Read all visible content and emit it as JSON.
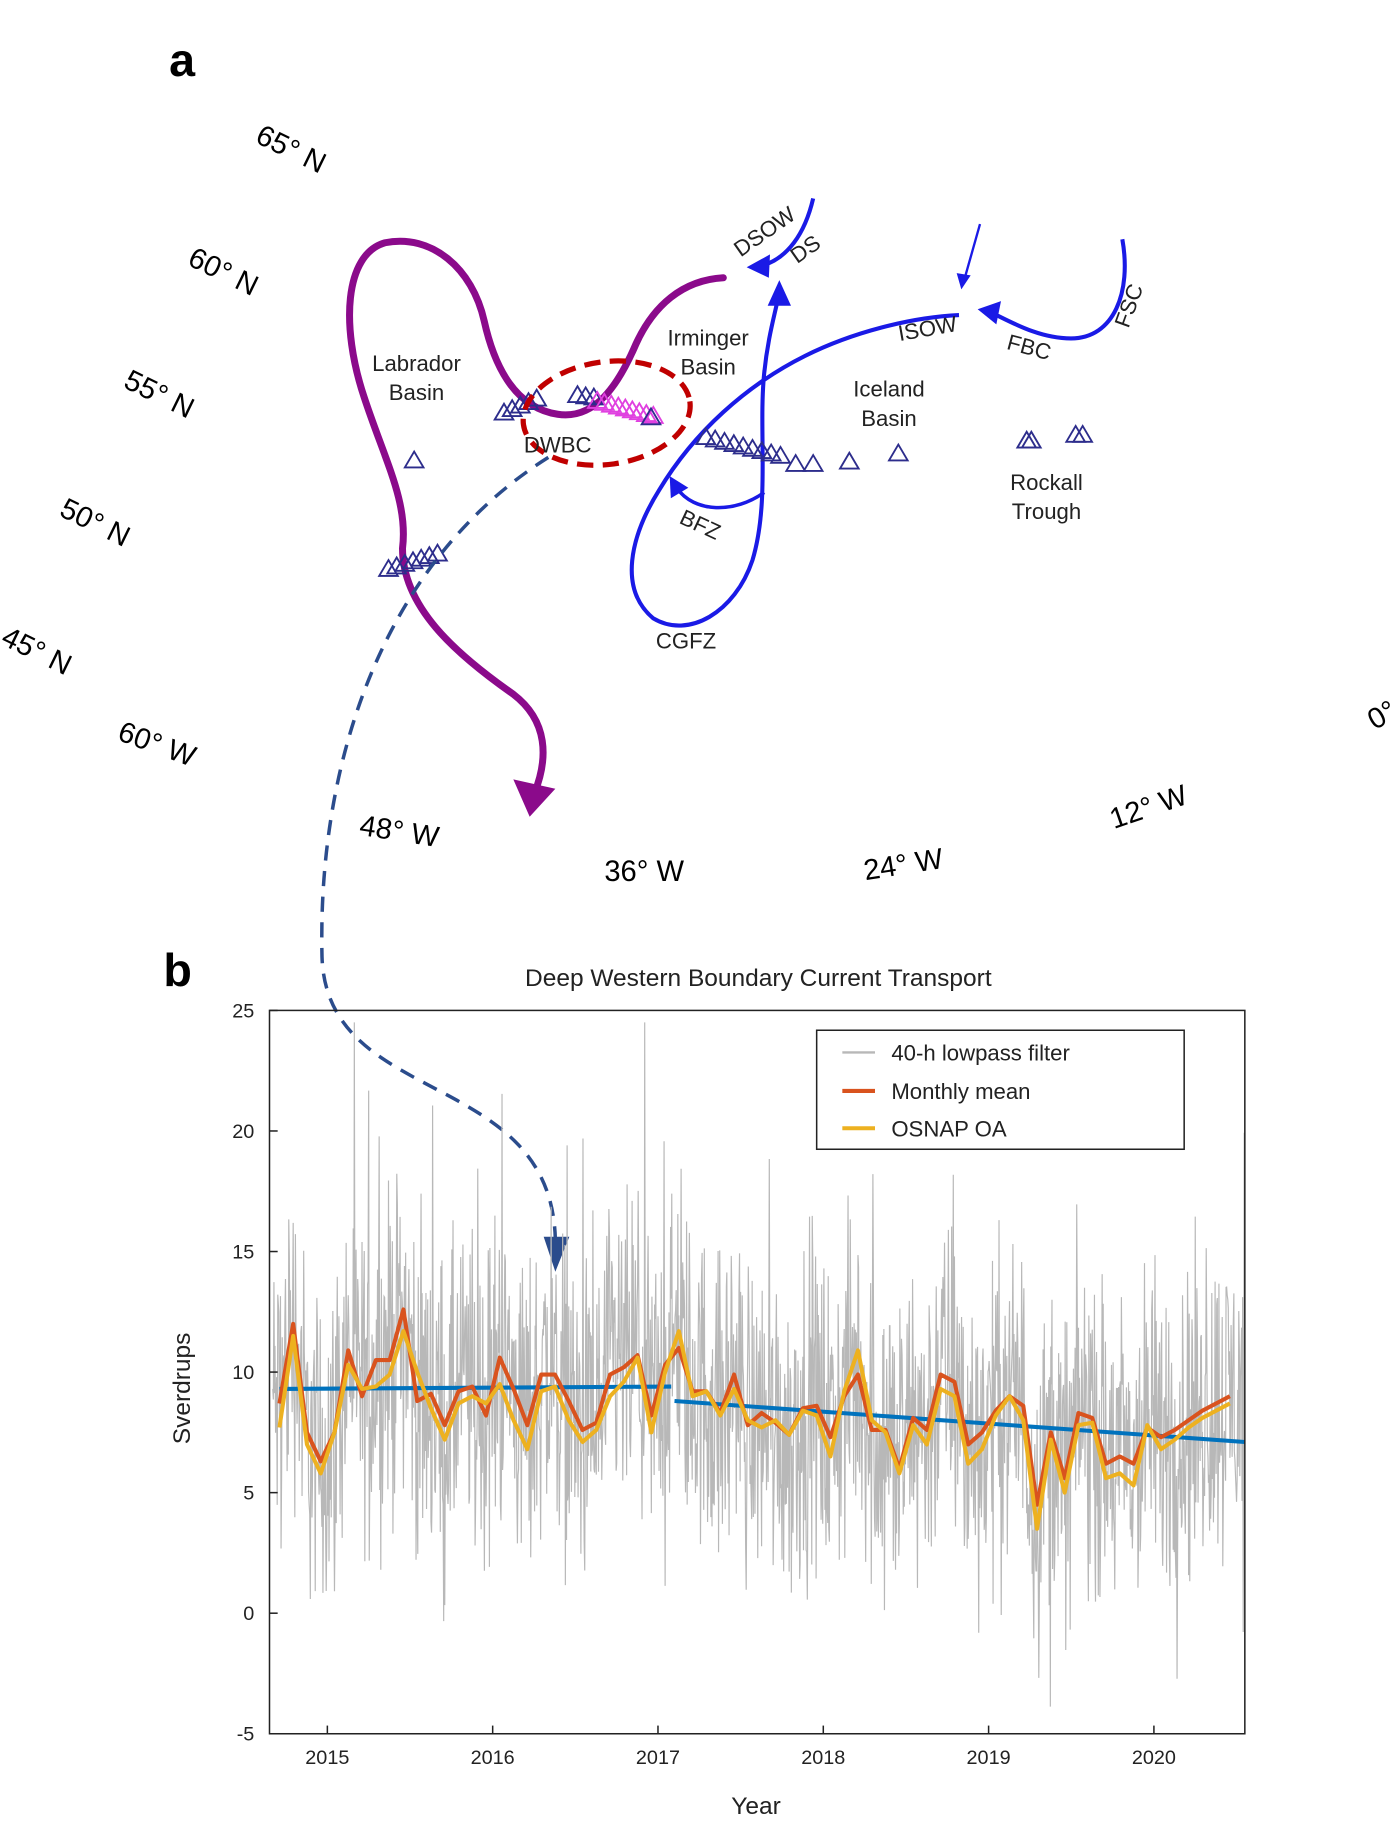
{
  "panel_a": {
    "letter": "a",
    "lat_labels": [
      "65° N",
      "60° N",
      "55° N",
      "50° N",
      "45° N"
    ],
    "lon_labels": [
      "60° W",
      "48° W",
      "36° W",
      "24° W",
      "12° W",
      "0°"
    ],
    "labels": {
      "labrador": [
        "Labrador",
        "Basin"
      ],
      "irminger": [
        "Irminger",
        "Basin"
      ],
      "iceland": [
        "Iceland",
        "Basin"
      ],
      "rockall": [
        "Rockall",
        "Trough"
      ],
      "dwbc": "DWBC",
      "dsow": "DSOW",
      "ds": "DS",
      "isow": "ISOW",
      "fbc": "FBC",
      "fsc": "FSC",
      "bfz": "BFZ",
      "cgfz": "CGFZ"
    },
    "colors": {
      "land": "#2e8b22",
      "ocean": "#a9dcf7",
      "shelf": "#e6f6fd",
      "deep": "#86c8f2",
      "dwbc_path": "#8b0a8b",
      "overflow_path": "#1a1ae6",
      "array": "#2d2d8c",
      "array_highlight": "#e040e0",
      "focus_ring": "#c00000",
      "link_arrow": "#2b4c8c"
    }
  },
  "panel_b": {
    "letter": "b"
  },
  "chart_data": {
    "type": "line",
    "title": "Deep Western Boundary Current Transport",
    "xlabel": "Year",
    "ylabel": "Sverdrups",
    "xlim": [
      2014.65,
      2020.55
    ],
    "ylim": [
      -5,
      25
    ],
    "xticks": [
      2015,
      2016,
      2017,
      2018,
      2019,
      2020
    ],
    "xtick_labels": [
      "2015",
      "2016",
      "2017",
      "2018",
      "2019",
      "2020"
    ],
    "yticks": [
      -5,
      0,
      5,
      10,
      15,
      20,
      25
    ],
    "ytick_labels": [
      "-5",
      "0",
      "5",
      "10",
      "15",
      "20",
      "25"
    ],
    "grid": false,
    "legend_position": "top-right",
    "legend": [
      "40-h lowpass filter",
      "Monthly mean",
      "OSNAP OA"
    ],
    "monthly_start_year": 2014.71,
    "series": [
      {
        "name": "Monthly mean",
        "color": "#d9531e",
        "values": [
          8.7,
          12.0,
          7.5,
          6.3,
          7.5,
          10.9,
          9.0,
          10.5,
          10.5,
          12.6,
          8.8,
          9.1,
          7.8,
          9.2,
          9.4,
          8.2,
          10.6,
          9.3,
          7.8,
          9.9,
          9.9,
          8.8,
          7.6,
          7.9,
          9.9,
          10.2,
          10.7,
          8.2,
          10.3,
          11.0,
          9.2,
          9.2,
          8.3,
          9.9,
          7.8,
          8.3,
          7.9,
          7.4,
          8.5,
          8.6,
          7.3,
          9.0,
          9.9,
          7.6,
          7.6,
          6.0,
          8.1,
          7.6,
          9.9,
          9.6,
          7.0,
          7.5,
          8.4,
          9.0,
          8.6,
          4.5,
          7.5,
          5.6,
          8.3,
          8.1,
          6.2,
          6.5,
          6.2,
          7.7,
          7.3,
          7.6,
          8.0,
          8.4,
          8.7,
          9.0
        ]
      },
      {
        "name": "OSNAP OA",
        "color": "#edb120",
        "values": [
          7.7,
          11.5,
          7.0,
          5.8,
          7.5,
          10.3,
          9.3,
          9.4,
          9.9,
          11.7,
          10.0,
          8.5,
          7.2,
          8.7,
          9.0,
          8.7,
          9.5,
          8.0,
          6.8,
          9.2,
          9.4,
          8.0,
          7.1,
          7.6,
          9.0,
          9.6,
          10.6,
          7.5,
          10.0,
          11.7,
          9.0,
          9.2,
          8.2,
          9.3,
          8.0,
          7.7,
          8.0,
          7.4,
          8.4,
          8.2,
          6.5,
          9.2,
          10.9,
          8.0,
          7.5,
          5.8,
          7.8,
          7.0,
          9.3,
          9.0,
          6.2,
          6.8,
          8.2,
          9.0,
          8.0,
          3.5,
          7.2,
          5.0,
          7.8,
          7.9,
          5.6,
          5.8,
          5.3,
          7.8,
          6.8,
          7.2,
          7.7,
          8.1,
          8.4,
          8.7
        ]
      },
      {
        "name": "40-h lowpass filter",
        "color": "#b8b8b8",
        "approx_range": [
          -4,
          24.5
        ]
      }
    ],
    "trend_lines": [
      {
        "color": "#0072bd",
        "x": [
          2014.71,
          2017.08
        ],
        "y": [
          9.3,
          9.4
        ]
      },
      {
        "color": "#0072bd",
        "x": [
          2017.1,
          2020.55
        ],
        "y": [
          8.8,
          7.1
        ]
      }
    ]
  }
}
